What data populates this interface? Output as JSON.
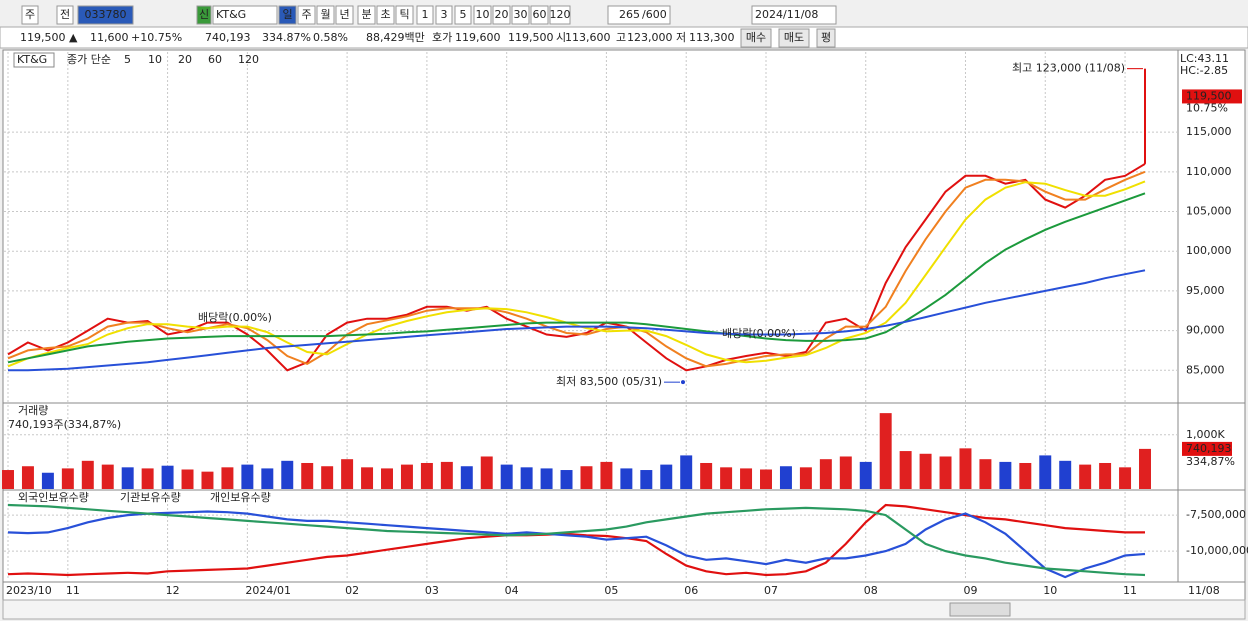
{
  "toolbar": {
    "period_kind": "주",
    "prev": "전",
    "code": "033780",
    "market": "신",
    "name": "KT&G",
    "intervals": [
      "일",
      "주",
      "월",
      "년",
      "분",
      "초",
      "틱"
    ],
    "units": [
      "1",
      "3",
      "5",
      "10",
      "20",
      "30",
      "60",
      "120"
    ],
    "count": "265",
    "count_max": "/600",
    "date": "2024/11/08"
  },
  "quote": {
    "price": "119,500 ▲",
    "change": "11,600",
    "change_rate": "+10.75%",
    "volume": "740,193",
    "volume_rate": "334.87%",
    "turnover": "0.58%",
    "amount": "88,429백만",
    "bid_label": "호가",
    "ask": "119,600",
    "bid": "119,500",
    "open_label": "시",
    "open": "113,600",
    "high_label": "고",
    "high": "123,000",
    "low_label": "저",
    "low": "113,300",
    "buy": "매수",
    "sell": "매도",
    "avg": "평"
  },
  "chart_data": [
    {
      "type": "line",
      "title": "KT&G",
      "subtitle": "종가 단순",
      "categories": [
        "2023/10",
        null,
        null,
        "11",
        null,
        null,
        null,
        null,
        "12",
        null,
        null,
        null,
        "2024/01",
        null,
        null,
        null,
        null,
        "02",
        null,
        null,
        null,
        "03",
        null,
        null,
        null,
        "04",
        null,
        null,
        null,
        null,
        "05",
        null,
        null,
        null,
        "06",
        null,
        null,
        null,
        "07",
        null,
        null,
        null,
        null,
        "08",
        null,
        null,
        null,
        null,
        "09",
        null,
        null,
        null,
        "10",
        null,
        null,
        null,
        "11",
        null
      ],
      "series": [
        {
          "name": "5",
          "color": "#e01010",
          "values": [
            87000,
            88500,
            87500,
            88500,
            90000,
            91500,
            91000,
            91200,
            89500,
            90000,
            91000,
            91000,
            89500,
            87500,
            85000,
            86000,
            89500,
            91000,
            91500,
            91500,
            92000,
            93000,
            93000,
            92500,
            93000,
            91500,
            90500,
            89500,
            89200,
            89700,
            91000,
            90500,
            88500,
            86500,
            85000,
            85500,
            86300,
            86800,
            87200,
            86800,
            87300,
            91000,
            91500,
            90000,
            96000,
            100500,
            104000,
            107500,
            109500,
            109500,
            108500,
            109000,
            106500,
            105500,
            107000,
            109000,
            109500,
            111000
          ]
        },
        {
          "name": "10",
          "color": "#f08020",
          "values": [
            86500,
            87500,
            87800,
            88000,
            89000,
            90500,
            91000,
            91000,
            90300,
            89800,
            90300,
            90800,
            90300,
            88800,
            86800,
            85800,
            87300,
            89500,
            90800,
            91300,
            91800,
            92500,
            92800,
            92800,
            92800,
            92300,
            91500,
            90500,
            89700,
            89500,
            90200,
            90500,
            89800,
            88000,
            86500,
            85500,
            85800,
            86300,
            86800,
            87000,
            87000,
            89000,
            90500,
            90500,
            93000,
            97500,
            101500,
            105000,
            108000,
            109000,
            109000,
            108800,
            107500,
            106500,
            106500,
            107800,
            109000,
            110000
          ]
        },
        {
          "name": "20",
          "color": "#f0e000",
          "values": [
            85500,
            86500,
            87200,
            87800,
            88300,
            89500,
            90300,
            90800,
            90800,
            90500,
            90300,
            90500,
            90500,
            89800,
            88500,
            87300,
            87000,
            88300,
            89500,
            90500,
            91200,
            91800,
            92300,
            92600,
            92800,
            92700,
            92300,
            91700,
            91000,
            90300,
            89900,
            90000,
            90000,
            89300,
            88200,
            87000,
            86300,
            86000,
            86200,
            86600,
            86900,
            87800,
            89000,
            89700,
            91000,
            93500,
            97000,
            100500,
            104000,
            106500,
            108000,
            108700,
            108500,
            107700,
            107000,
            107000,
            107800,
            108800
          ]
        },
        {
          "name": "60",
          "color": "#1c9a3c",
          "values": [
            86000,
            86500,
            87000,
            87500,
            88000,
            88300,
            88600,
            88800,
            89000,
            89100,
            89200,
            89300,
            89300,
            89300,
            89300,
            89300,
            89300,
            89400,
            89500,
            89600,
            89800,
            89900,
            90100,
            90300,
            90500,
            90700,
            90900,
            91000,
            91000,
            91000,
            91000,
            91000,
            90800,
            90500,
            90200,
            89900,
            89600,
            89300,
            89000,
            88800,
            88700,
            88700,
            88800,
            89000,
            89800,
            91200,
            92800,
            94500,
            96500,
            98500,
            100200,
            101500,
            102700,
            103700,
            104600,
            105500,
            106400,
            107300
          ]
        },
        {
          "name": "120",
          "color": "#2850d8",
          "values": [
            85000,
            85000,
            85100,
            85200,
            85400,
            85600,
            85800,
            86000,
            86300,
            86600,
            86900,
            87200,
            87500,
            87800,
            88000,
            88200,
            88400,
            88600,
            88800,
            89000,
            89200,
            89400,
            89600,
            89800,
            90000,
            90200,
            90300,
            90400,
            90500,
            90500,
            90500,
            90400,
            90300,
            90100,
            89900,
            89700,
            89600,
            89500,
            89500,
            89500,
            89600,
            89700,
            89900,
            90200,
            90600,
            91100,
            91700,
            92300,
            92900,
            93500,
            94000,
            94500,
            95000,
            95500,
            96000,
            96600,
            97100,
            97600
          ]
        }
      ],
      "ylim": [
        81000,
        125100
      ],
      "yticks": [
        {
          "value": 85000,
          "label": "85,000"
        },
        {
          "value": 90000,
          "label": "90,000"
        },
        {
          "value": 95000,
          "label": "95,000"
        },
        {
          "value": 100000,
          "label": "100,000"
        },
        {
          "value": 105000,
          "label": "105,000"
        },
        {
          "value": 110000,
          "label": "110,000"
        },
        {
          "value": 115000,
          "label": "115,000"
        }
      ],
      "grid": true,
      "high": {
        "value": 123000,
        "label": "최고 123,000 (11/08)"
      },
      "low": {
        "value": 83500,
        "label": "최저 83,500 (05/31)"
      },
      "dividend_labels": [
        "배당락(0.00%)",
        "배당락(0.00%)"
      ],
      "lc": "LC:43.11",
      "hc": "HC:-2.85",
      "last": {
        "value": 119500,
        "label": "119,500"
      },
      "last_change": "10.75%"
    },
    {
      "type": "bar",
      "title": "거래량",
      "subtitle": "740,193주(334,87%)",
      "values": [
        350000,
        420000,
        300000,
        380000,
        520000,
        450000,
        400000,
        380000,
        430000,
        360000,
        320000,
        400000,
        450000,
        380000,
        520000,
        480000,
        420000,
        550000,
        400000,
        380000,
        450000,
        480000,
        500000,
        420000,
        600000,
        450000,
        400000,
        380000,
        350000,
        420000,
        500000,
        380000,
        350000,
        450000,
        620000,
        480000,
        400000,
        380000,
        360000,
        420000,
        400000,
        550000,
        600000,
        500000,
        1400000,
        700000,
        650000,
        600000,
        750000,
        550000,
        500000,
        480000,
        620000,
        520000,
        450000,
        480000,
        400000,
        740193
      ],
      "last_label": "740,193",
      "last_rate": "334,87%",
      "ylim": [
        0,
        1550000
      ],
      "yticks": [
        {
          "value": 1000000,
          "label": "1,000K"
        }
      ],
      "grid": true
    },
    {
      "type": "line",
      "series": [
        {
          "name": "외국인보유수량",
          "color": "#e01010",
          "values": [
            -11600000,
            -11550000,
            -11600000,
            -11650000,
            -11600000,
            -11550000,
            -11500000,
            -11550000,
            -11400000,
            -11350000,
            -11300000,
            -11250000,
            -11200000,
            -11000000,
            -10800000,
            -10600000,
            -10400000,
            -10300000,
            -10100000,
            -9900000,
            -9700000,
            -9500000,
            -9300000,
            -9100000,
            -9000000,
            -8900000,
            -8900000,
            -8850000,
            -8800000,
            -8900000,
            -8950000,
            -9100000,
            -9300000,
            -10200000,
            -11000000,
            -11400000,
            -11600000,
            -11500000,
            -11650000,
            -11600000,
            -11400000,
            -10800000,
            -9500000,
            -8000000,
            -6800000,
            -6900000,
            -7100000,
            -7300000,
            -7500000,
            -7700000,
            -7800000,
            -8000000,
            -8200000,
            -8400000,
            -8500000,
            -8600000,
            -8700000,
            -8700000
          ]
        },
        {
          "name": "기관보유수량",
          "color": "#2850d8",
          "values": [
            -8700000,
            -8750000,
            -8700000,
            -8400000,
            -8000000,
            -7700000,
            -7500000,
            -7400000,
            -7350000,
            -7300000,
            -7250000,
            -7300000,
            -7400000,
            -7600000,
            -7800000,
            -7900000,
            -7900000,
            -8000000,
            -8100000,
            -8200000,
            -8300000,
            -8400000,
            -8500000,
            -8600000,
            -8700000,
            -8800000,
            -8700000,
            -8800000,
            -8900000,
            -9000000,
            -9200000,
            -9100000,
            -9000000,
            -9600000,
            -10300000,
            -10600000,
            -10500000,
            -10700000,
            -10900000,
            -10600000,
            -10800000,
            -10500000,
            -10500000,
            -10300000,
            -10000000,
            -9500000,
            -8500000,
            -7800000,
            -7400000,
            -8000000,
            -8800000,
            -10000000,
            -11200000,
            -11800000,
            -11200000,
            -10800000,
            -10300000,
            -10200000
          ]
        },
        {
          "name": "개인보유수량",
          "color": "#2a9a60",
          "values": [
            -6800000,
            -6850000,
            -6900000,
            -7000000,
            -7100000,
            -7200000,
            -7300000,
            -7400000,
            -7500000,
            -7600000,
            -7700000,
            -7800000,
            -7900000,
            -8000000,
            -8100000,
            -8200000,
            -8300000,
            -8400000,
            -8500000,
            -8600000,
            -8650000,
            -8700000,
            -8750000,
            -8800000,
            -8850000,
            -8900000,
            -8850000,
            -8800000,
            -8700000,
            -8600000,
            -8500000,
            -8300000,
            -8000000,
            -7800000,
            -7600000,
            -7400000,
            -7300000,
            -7200000,
            -7100000,
            -7050000,
            -7000000,
            -7050000,
            -7100000,
            -7200000,
            -7500000,
            -8500000,
            -9500000,
            -10000000,
            -10300000,
            -10500000,
            -10800000,
            -11000000,
            -11200000,
            -11300000,
            -11400000,
            -11500000,
            -11600000,
            -11650000
          ]
        }
      ],
      "ylim": [
        -12000000,
        -5900000
      ],
      "yticks": [
        {
          "value": -7500000,
          "label": "-7,500,000"
        },
        {
          "value": -10000000,
          "label": "-10,000,000"
        }
      ],
      "grid": true
    }
  ],
  "x_end_label": "11/08"
}
